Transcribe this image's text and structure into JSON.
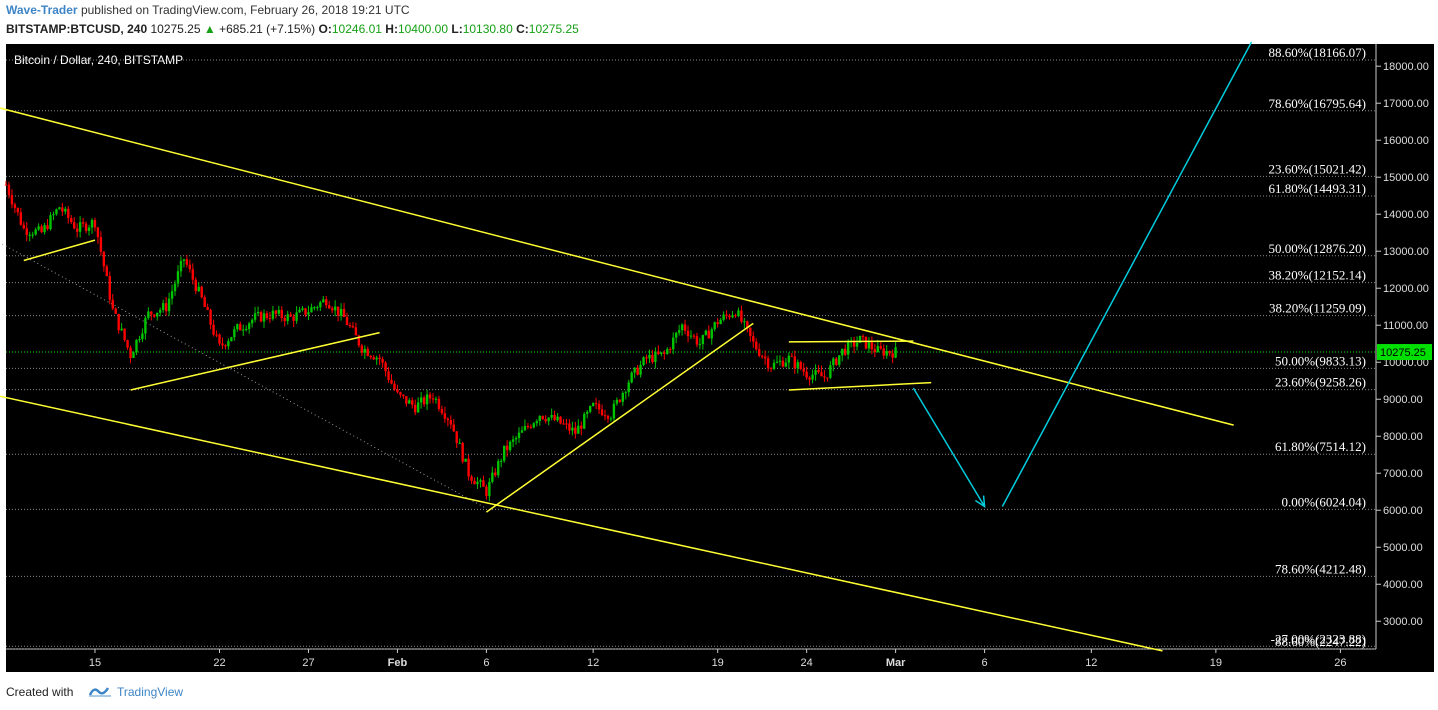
{
  "header": {
    "author": "Wave-Trader",
    "published_text": "published on TradingView.com, February 26, 2018 19:21 UTC",
    "symbol": "BITSTAMP:BTCUSD, 240",
    "last": "10275.25",
    "change": "+685.21 (+7.15%)",
    "o_label": "O:",
    "o_value": "10246.01",
    "h_label": "H:",
    "h_value": "10400.00",
    "l_label": "L:",
    "l_value": "10130.80",
    "c_label": "C:",
    "c_value": "10275.25"
  },
  "footer": {
    "created_with": "Created with",
    "brand": "TradingView"
  },
  "colors": {
    "background": "#000000",
    "up": "#00c400",
    "down": "#ff0000",
    "trendline": "#ffff33",
    "arrow": "#00ccdd",
    "price_tag": "#00e000"
  },
  "chart_data": {
    "type": "candlestick",
    "title": "Bitcoin / Dollar, 240, BITSTAMP",
    "current_price": 10275.25,
    "current_price_label": "10275.25",
    "y_range": [
      2250,
      18600
    ],
    "y_ticks": [
      18000,
      17000,
      16000,
      15000,
      14000,
      13000,
      12000,
      11000,
      10000,
      9000,
      8000,
      7000,
      6000,
      5000,
      4000,
      3000
    ],
    "y_tick_labels": [
      "18000.00",
      "17000.00",
      "16000.00",
      "15000.00",
      "14000.00",
      "13000.00",
      "12000.00",
      "11000.00",
      "10000.00",
      "9000.00",
      "8000.00",
      "7000.00",
      "6000.00",
      "5000.00",
      "4000.00",
      "3000.00"
    ],
    "x_range": [
      "2018-01-10",
      "2018-03-28"
    ],
    "x_ticks": [
      {
        "date": "2018-01-15",
        "label": "15"
      },
      {
        "date": "2018-01-22",
        "label": "22"
      },
      {
        "date": "2018-01-27",
        "label": "27"
      },
      {
        "date": "2018-02-01",
        "label": "Feb"
      },
      {
        "date": "2018-02-06",
        "label": "6"
      },
      {
        "date": "2018-02-12",
        "label": "12"
      },
      {
        "date": "2018-02-19",
        "label": "19"
      },
      {
        "date": "2018-02-24",
        "label": "24"
      },
      {
        "date": "2018-03-01",
        "label": "Mar"
      },
      {
        "date": "2018-03-06",
        "label": "6"
      },
      {
        "date": "2018-03-12",
        "label": "12"
      },
      {
        "date": "2018-03-19",
        "label": "19"
      },
      {
        "date": "2018-03-26",
        "label": "26"
      }
    ],
    "fib_levels": [
      {
        "price": 18166.07,
        "label": "88.60%(18166.07)"
      },
      {
        "price": 16795.64,
        "label": "78.60%(16795.64)"
      },
      {
        "price": 15021.42,
        "label": "23.60%(15021.42)"
      },
      {
        "price": 14493.31,
        "label": "61.80%(14493.31)"
      },
      {
        "price": 12876.2,
        "label": "50.00%(12876.20)"
      },
      {
        "price": 12152.14,
        "label": "38.20%(12152.14)"
      },
      {
        "price": 11259.09,
        "label": "38.20%(11259.09)"
      },
      {
        "price": 9833.13,
        "label": "50.00%(9833.13)"
      },
      {
        "price": 9258.26,
        "label": "23.60%(9258.26)"
      },
      {
        "price": 7514.12,
        "label": "61.80%(7514.12)"
      },
      {
        "price": 6024.04,
        "label": "0.00%(6024.04)"
      },
      {
        "price": 4212.48,
        "label": "78.60%(4212.48)"
      },
      {
        "price": 2323.88,
        "label": "-27.00%(2323.88)"
      },
      {
        "price": 2247.22,
        "label": "88.60%(2247.22)"
      }
    ],
    "price_path": [
      [
        "2018-01-10",
        14800
      ],
      [
        "2018-01-11",
        13600
      ],
      [
        "2018-01-12",
        13500
      ],
      [
        "2018-01-13",
        14200
      ],
      [
        "2018-01-14",
        13600
      ],
      [
        "2018-01-15",
        13800
      ],
      [
        "2018-01-16",
        11400
      ],
      [
        "2018-01-17",
        10200
      ],
      [
        "2018-01-18",
        11300
      ],
      [
        "2018-01-19",
        11500
      ],
      [
        "2018-01-20",
        12800
      ],
      [
        "2018-01-21",
        11700
      ],
      [
        "2018-01-22",
        10400
      ],
      [
        "2018-01-23",
        10900
      ],
      [
        "2018-01-24",
        11200
      ],
      [
        "2018-01-25",
        11300
      ],
      [
        "2018-01-26",
        11200
      ],
      [
        "2018-01-27",
        11400
      ],
      [
        "2018-01-28",
        11700
      ],
      [
        "2018-01-29",
        11200
      ],
      [
        "2018-01-30",
        10400
      ],
      [
        "2018-01-31",
        10100
      ],
      [
        "2018-02-01",
        9100
      ],
      [
        "2018-02-02",
        8800
      ],
      [
        "2018-02-03",
        9100
      ],
      [
        "2018-02-04",
        8400
      ],
      [
        "2018-02-05",
        7000
      ],
      [
        "2018-02-06",
        6500
      ],
      [
        "2018-02-07",
        7600
      ],
      [
        "2018-02-08",
        8100
      ],
      [
        "2018-02-09",
        8600
      ],
      [
        "2018-02-10",
        8400
      ],
      [
        "2018-02-11",
        8100
      ],
      [
        "2018-02-12",
        8800
      ],
      [
        "2018-02-13",
        8600
      ],
      [
        "2018-02-14",
        9500
      ],
      [
        "2018-02-15",
        10100
      ],
      [
        "2018-02-16",
        10200
      ],
      [
        "2018-02-17",
        11000
      ],
      [
        "2018-02-18",
        10500
      ],
      [
        "2018-02-19",
        11100
      ],
      [
        "2018-02-20",
        11400
      ],
      [
        "2018-02-21",
        10500
      ],
      [
        "2018-02-22",
        9900
      ],
      [
        "2018-02-23",
        10100
      ],
      [
        "2018-02-24",
        9700
      ],
      [
        "2018-02-25",
        9600
      ],
      [
        "2018-02-26",
        10300
      ],
      [
        "2018-02-27",
        10600
      ],
      [
        "2018-02-28",
        10300
      ],
      [
        "2018-03-01",
        10275.25
      ]
    ],
    "trendlines": [
      {
        "from": [
          "2018-01-09",
          16950
        ],
        "to": [
          "2018-03-20",
          8300
        ]
      },
      {
        "from": [
          "2018-01-09",
          9150
        ],
        "to": [
          "2018-03-16",
          2200
        ]
      },
      {
        "from": [
          "2018-01-11",
          12750
        ],
        "to": [
          "2018-01-15",
          13300
        ]
      },
      {
        "from": [
          "2018-01-17",
          9250
        ],
        "to": [
          "2018-01-31",
          10800
        ]
      },
      {
        "from": [
          "2018-02-06",
          5950
        ],
        "to": [
          "2018-02-21",
          11050
        ]
      },
      {
        "from": [
          "2018-02-23",
          10550
        ],
        "to": [
          "2018-03-02",
          10570
        ]
      },
      {
        "from": [
          "2018-02-23",
          9250
        ],
        "to": [
          "2018-03-03",
          9450
        ]
      }
    ],
    "dotted_line": {
      "from": [
        "2018-01-09",
        13400
      ],
      "to": [
        "2018-02-06",
        6050
      ]
    },
    "projection": [
      {
        "from": [
          "2018-03-02",
          9300
        ],
        "to": [
          "2018-03-06",
          6100
        ],
        "arrow": true
      },
      {
        "from": [
          "2018-03-07",
          6100
        ],
        "to": [
          "2018-03-21",
          18650
        ],
        "arrow": false
      }
    ]
  }
}
